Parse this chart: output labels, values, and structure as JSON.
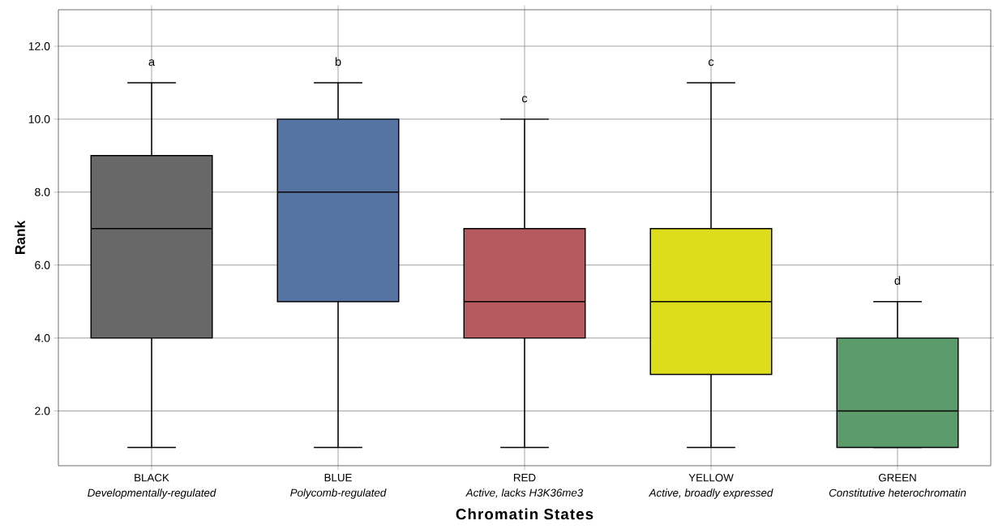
{
  "chart_data": {
    "type": "box",
    "xlabel": "Chromatin States",
    "ylabel": "Rank",
    "categories": [
      "BLACK",
      "BLUE",
      "RED",
      "YELLOW",
      "GREEN"
    ],
    "colors": [
      "#686868",
      "#5574a3",
      "#b55a5e",
      "#dedd1c",
      "#5c9b6c"
    ],
    "boxes": [
      {
        "low": 1,
        "q1": 4,
        "median": 7,
        "q3": 9,
        "high": 11
      },
      {
        "low": 1,
        "q1": 5,
        "median": 8,
        "q3": 10,
        "high": 11
      },
      {
        "low": 1,
        "q1": 4,
        "median": 5,
        "q3": 7,
        "high": 10
      },
      {
        "low": 1,
        "q1": 3,
        "median": 5,
        "q3": 7,
        "high": 11
      },
      {
        "low": 1,
        "q1": 1,
        "median": 2,
        "q3": 4,
        "high": 5
      }
    ],
    "ylim": [
      0.5,
      13
    ],
    "yticks": [
      {
        "value": 2,
        "label": "2.0"
      },
      {
        "value": 4,
        "label": "4.0"
      },
      {
        "value": 6,
        "label": "6.0"
      },
      {
        "value": 8,
        "label": "8.0"
      },
      {
        "value": 10,
        "label": "10.0"
      },
      {
        "value": 12,
        "label": "12.0"
      }
    ],
    "grid": true,
    "annotations": [
      "a",
      "b",
      "c",
      "c",
      "d",
      "Developmentally-regulated",
      "Polycomb-regulated",
      "Active, lacks H3K36me3",
      "Active, broadly expressed",
      "Constitutive heterochromatin"
    ]
  }
}
